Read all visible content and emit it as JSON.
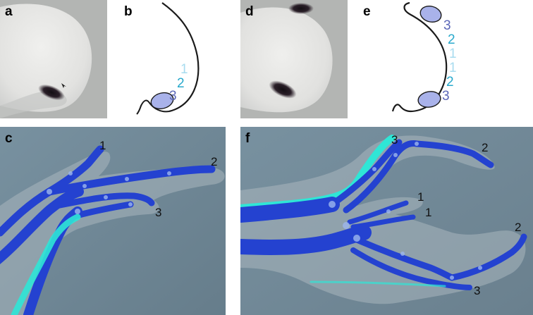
{
  "panels": {
    "a": {
      "label": "a"
    },
    "b": {
      "label": "b",
      "digits": [
        "1",
        "2",
        "3"
      ]
    },
    "c": {
      "label": "c",
      "digits": [
        "1",
        "2",
        "3"
      ]
    },
    "d": {
      "label": "d"
    },
    "e": {
      "label": "e",
      "digits": [
        "3",
        "2",
        "1",
        "1",
        "2",
        "3"
      ]
    },
    "f": {
      "label": "f",
      "digits": [
        "3",
        "2",
        "1",
        "1",
        "2",
        "3"
      ]
    }
  },
  "colors": {
    "photo_bg": "#b3b5b3",
    "bud": "#e6e6e4",
    "ink": "#140f14",
    "cartilage": "#2442d0",
    "bone_cyan": "#2fe6d6",
    "oval_fill": "#a9b2ea",
    "digit_light": "#a8dcef",
    "digit_mid": "#28a9cc",
    "digit_dark": "#5b67b8",
    "stain_bg": "#6f8796"
  }
}
